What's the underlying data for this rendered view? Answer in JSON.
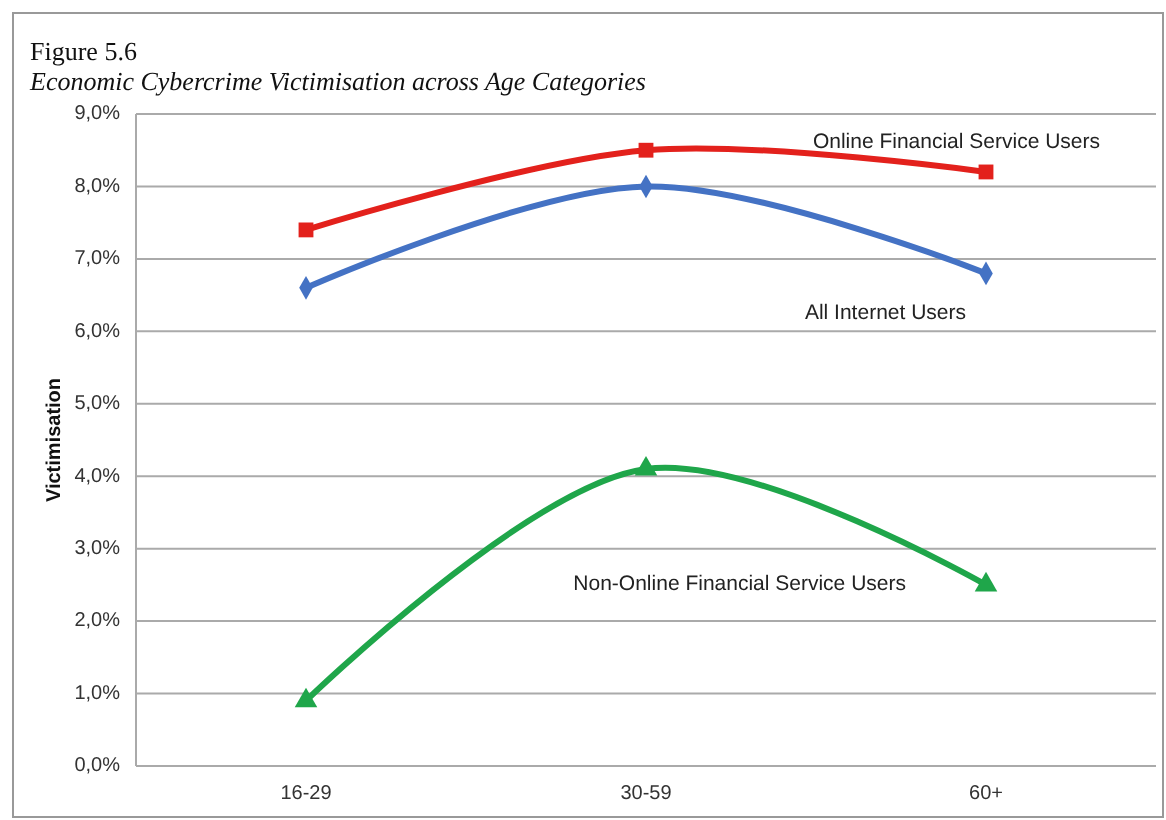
{
  "chart_data": {
    "type": "line",
    "title": "Figure 5.6",
    "subtitle": "Economic Cybercrime Victimisation across Age Categories",
    "ylabel": "Victimisation",
    "categories": [
      "16-29",
      "30-59",
      "60+"
    ],
    "series": [
      {
        "name": "Online Financial Service Users",
        "color": "#e3211c",
        "marker": "square",
        "values": [
          7.4,
          8.5,
          8.2
        ]
      },
      {
        "name": "All Internet Users",
        "color": "#4472c4",
        "marker": "diamond",
        "values": [
          6.6,
          8.0,
          6.8
        ]
      },
      {
        "name": "Non-Online Financial Service Users",
        "color": "#1fa64a",
        "marker": "triangle",
        "values": [
          0.9,
          4.1,
          2.5
        ]
      }
    ],
    "ylim": [
      0,
      9
    ],
    "yticks": [
      {
        "value": 0,
        "label": "0,0%"
      },
      {
        "value": 1,
        "label": "1,0%"
      },
      {
        "value": 2,
        "label": "2,0%"
      },
      {
        "value": 3,
        "label": "3,0%"
      },
      {
        "value": 4,
        "label": "4,0%"
      },
      {
        "value": 5,
        "label": "5,0%"
      },
      {
        "value": 6,
        "label": "6,0%"
      },
      {
        "value": 7,
        "label": "7,0%"
      },
      {
        "value": 8,
        "label": "8,0%"
      },
      {
        "value": 9,
        "label": "9,0%"
      }
    ],
    "grid": "y",
    "line_style": "solid"
  }
}
